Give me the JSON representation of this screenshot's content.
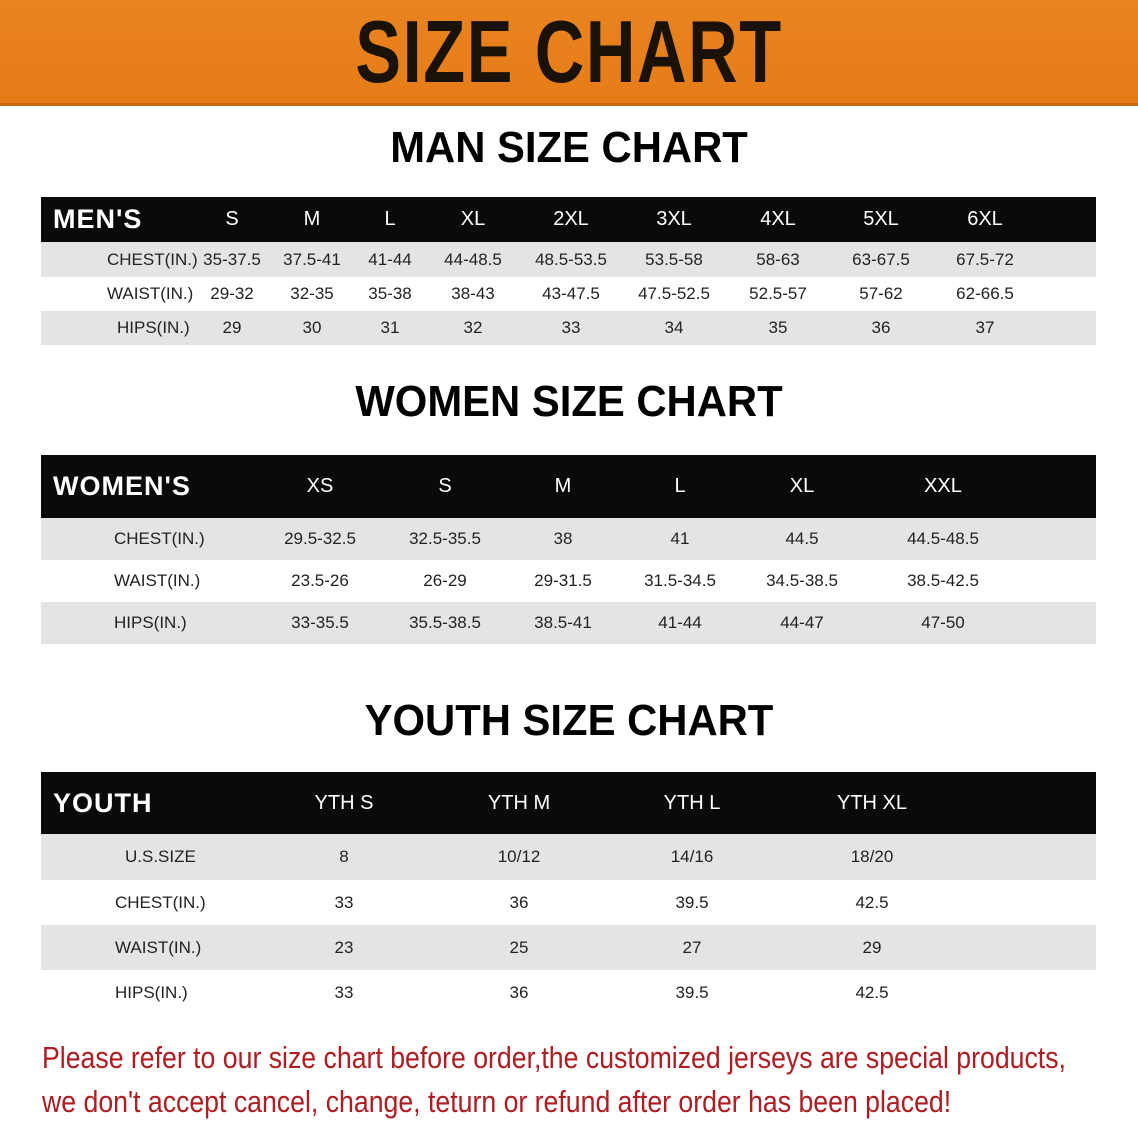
{
  "banner": {
    "title": "SIZE CHART",
    "color": "#e8801e"
  },
  "men": {
    "title": "MAN SIZE CHART",
    "header": [
      "MEN'S",
      "S",
      "M",
      "L",
      "XL",
      "2XL",
      "3XL",
      "4XL",
      "5XL",
      "6XL"
    ],
    "rows": [
      [
        "CHEST(IN.)",
        "35-37.5",
        "37.5-41",
        "41-44",
        "44-48.5",
        "48.5-53.5",
        "53.5-58",
        "58-63",
        "63-67.5",
        "67.5-72"
      ],
      [
        "WAIST(IN.)",
        "29-32",
        "32-35",
        "35-38",
        "38-43",
        "43-47.5",
        "47.5-52.5",
        "52.5-57",
        "57-62",
        "62-66.5"
      ],
      [
        "HIPS(IN.)",
        "29",
        "30",
        "31",
        "32",
        "33",
        "34",
        "35",
        "36",
        "37"
      ]
    ]
  },
  "women": {
    "title": "WOMEN SIZE CHART",
    "header": [
      "WOMEN'S",
      "XS",
      "S",
      "M",
      "L",
      "XL",
      "XXL"
    ],
    "rows": [
      [
        "CHEST(IN.)",
        "29.5-32.5",
        "32.5-35.5",
        "38",
        "41",
        "44.5",
        "44.5-48.5"
      ],
      [
        "WAIST(IN.)",
        "23.5-26",
        "26-29",
        "29-31.5",
        "31.5-34.5",
        "34.5-38.5",
        "38.5-42.5"
      ],
      [
        "HIPS(IN.)",
        "33-35.5",
        "35.5-38.5",
        "38.5-41",
        "41-44",
        "44-47",
        "47-50"
      ]
    ]
  },
  "youth": {
    "title": "YOUTH SIZE CHART",
    "header": [
      "YOUTH",
      "YTH S",
      "YTH M",
      "YTH L",
      "YTH XL"
    ],
    "rows": [
      [
        "U.S.SIZE",
        "8",
        "10/12",
        "14/16",
        "18/20"
      ],
      [
        "CHEST(IN.)",
        "33",
        "36",
        "39.5",
        "42.5"
      ],
      [
        "WAIST(IN.)",
        "23",
        "25",
        "27",
        "29"
      ],
      [
        "HIPS(IN.)",
        "33",
        "36",
        "39.5",
        "42.5"
      ]
    ]
  },
  "notice": {
    "line1": "Please refer to our size chart before order,the customized jerseys are special products,",
    "line2": "we don't accept cancel, change, teturn or refund after order has been placed!",
    "color": "#b01c22"
  }
}
